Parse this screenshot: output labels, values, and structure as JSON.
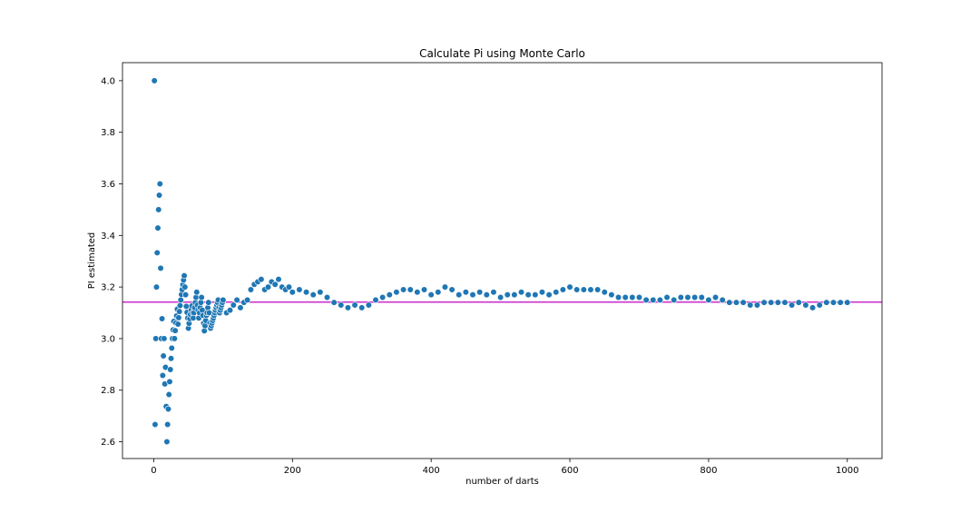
{
  "chart_data": {
    "type": "scatter",
    "title": "Calculate Pi using Monte Carlo",
    "xlabel": "number of darts",
    "ylabel": "PI estimated",
    "xlim": [
      -45,
      1050
    ],
    "ylim": [
      2.535,
      4.07
    ],
    "xticks": [
      0,
      200,
      400,
      600,
      800,
      1000
    ],
    "yticks": [
      2.6,
      2.8,
      3.0,
      3.2,
      3.4,
      3.6,
      3.8,
      4.0
    ],
    "ytick_labels": [
      "2.6",
      "2.8",
      "3.0",
      "3.2",
      "3.4",
      "3.6",
      "3.8",
      "4.0"
    ],
    "reference_line": {
      "y": 3.14159,
      "color": "#cc33cc"
    },
    "colors": {
      "points": "#1f77b4",
      "point_edge": "#ffffff",
      "frame": "#000000"
    },
    "grid": false,
    "series": [
      {
        "points": [
          [
            1,
            4.0
          ],
          [
            2,
            2.667
          ],
          [
            3,
            3.0
          ],
          [
            4,
            3.2
          ],
          [
            5,
            3.333
          ],
          [
            6,
            3.429
          ],
          [
            7,
            3.5
          ],
          [
            8,
            3.556
          ],
          [
            9,
            3.6
          ],
          [
            10,
            3.273
          ],
          [
            11,
            3.0
          ],
          [
            12,
            3.077
          ],
          [
            13,
            2.857
          ],
          [
            14,
            2.933
          ],
          [
            15,
            3.0
          ],
          [
            16,
            2.824
          ],
          [
            17,
            2.889
          ],
          [
            18,
            2.737
          ],
          [
            19,
            2.6
          ],
          [
            20,
            2.667
          ],
          [
            21,
            2.727
          ],
          [
            22,
            2.783
          ],
          [
            23,
            2.833
          ],
          [
            24,
            2.88
          ],
          [
            25,
            2.923
          ],
          [
            26,
            2.963
          ],
          [
            27,
            3.0
          ],
          [
            28,
            3.034
          ],
          [
            29,
            3.067
          ],
          [
            30,
            3.0
          ],
          [
            31,
            3.031
          ],
          [
            32,
            3.061
          ],
          [
            33,
            3.088
          ],
          [
            34,
            3.114
          ],
          [
            35,
            3.056
          ],
          [
            36,
            3.081
          ],
          [
            37,
            3.105
          ],
          [
            38,
            3.128
          ],
          [
            39,
            3.15
          ],
          [
            40,
            3.171
          ],
          [
            41,
            3.19
          ],
          [
            42,
            3.209
          ],
          [
            43,
            3.227
          ],
          [
            44,
            3.244
          ],
          [
            45,
            3.2
          ],
          [
            46,
            3.17
          ],
          [
            47,
            3.125
          ],
          [
            48,
            3.102
          ],
          [
            49,
            3.08
          ],
          [
            50,
            3.04
          ],
          [
            51,
            3.059
          ],
          [
            52,
            3.077
          ],
          [
            53,
            3.094
          ],
          [
            54,
            3.111
          ],
          [
            55,
            3.127
          ],
          [
            56,
            3.1
          ],
          [
            57,
            3.08
          ],
          [
            58,
            3.1
          ],
          [
            59,
            3.12
          ],
          [
            60,
            3.14
          ],
          [
            61,
            3.16
          ],
          [
            62,
            3.18
          ],
          [
            63,
            3.13
          ],
          [
            64,
            3.11
          ],
          [
            65,
            3.08
          ],
          [
            66,
            3.1
          ],
          [
            67,
            3.12
          ],
          [
            68,
            3.14
          ],
          [
            69,
            3.16
          ],
          [
            70,
            3.11
          ],
          [
            71,
            3.09
          ],
          [
            72,
            3.06
          ],
          [
            73,
            3.03
          ],
          [
            74,
            3.05
          ],
          [
            75,
            3.07
          ],
          [
            76,
            3.09
          ],
          [
            77,
            3.1
          ],
          [
            78,
            3.12
          ],
          [
            79,
            3.14
          ],
          [
            80,
            3.1
          ],
          [
            81,
            3.06
          ],
          [
            82,
            3.04
          ],
          [
            83,
            3.05
          ],
          [
            84,
            3.06
          ],
          [
            85,
            3.07
          ],
          [
            86,
            3.08
          ],
          [
            87,
            3.09
          ],
          [
            88,
            3.1
          ],
          [
            89,
            3.11
          ],
          [
            90,
            3.12
          ],
          [
            91,
            3.13
          ],
          [
            92,
            3.14
          ],
          [
            93,
            3.15
          ],
          [
            94,
            3.12
          ],
          [
            95,
            3.1
          ],
          [
            96,
            3.11
          ],
          [
            97,
            3.12
          ],
          [
            98,
            3.13
          ],
          [
            99,
            3.14
          ],
          [
            100,
            3.15
          ],
          [
            105,
            3.1
          ],
          [
            110,
            3.11
          ],
          [
            115,
            3.13
          ],
          [
            120,
            3.15
          ],
          [
            125,
            3.12
          ],
          [
            130,
            3.14
          ],
          [
            135,
            3.15
          ],
          [
            140,
            3.19
          ],
          [
            145,
            3.21
          ],
          [
            150,
            3.22
          ],
          [
            155,
            3.23
          ],
          [
            160,
            3.19
          ],
          [
            165,
            3.2
          ],
          [
            170,
            3.22
          ],
          [
            175,
            3.21
          ],
          [
            180,
            3.23
          ],
          [
            185,
            3.2
          ],
          [
            190,
            3.19
          ],
          [
            195,
            3.2
          ],
          [
            200,
            3.18
          ],
          [
            210,
            3.19
          ],
          [
            220,
            3.18
          ],
          [
            230,
            3.17
          ],
          [
            240,
            3.18
          ],
          [
            250,
            3.16
          ],
          [
            260,
            3.14
          ],
          [
            270,
            3.13
          ],
          [
            280,
            3.12
          ],
          [
            290,
            3.13
          ],
          [
            300,
            3.12
          ],
          [
            310,
            3.13
          ],
          [
            320,
            3.15
          ],
          [
            330,
            3.16
          ],
          [
            340,
            3.17
          ],
          [
            350,
            3.18
          ],
          [
            360,
            3.19
          ],
          [
            370,
            3.19
          ],
          [
            380,
            3.18
          ],
          [
            390,
            3.19
          ],
          [
            400,
            3.17
          ],
          [
            410,
            3.18
          ],
          [
            420,
            3.2
          ],
          [
            430,
            3.19
          ],
          [
            440,
            3.17
          ],
          [
            450,
            3.18
          ],
          [
            460,
            3.17
          ],
          [
            470,
            3.18
          ],
          [
            480,
            3.17
          ],
          [
            490,
            3.18
          ],
          [
            500,
            3.16
          ],
          [
            510,
            3.17
          ],
          [
            520,
            3.17
          ],
          [
            530,
            3.18
          ],
          [
            540,
            3.17
          ],
          [
            550,
            3.17
          ],
          [
            560,
            3.18
          ],
          [
            570,
            3.17
          ],
          [
            580,
            3.18
          ],
          [
            590,
            3.19
          ],
          [
            600,
            3.2
          ],
          [
            610,
            3.19
          ],
          [
            620,
            3.19
          ],
          [
            630,
            3.19
          ],
          [
            640,
            3.19
          ],
          [
            650,
            3.18
          ],
          [
            660,
            3.17
          ],
          [
            670,
            3.16
          ],
          [
            680,
            3.16
          ],
          [
            690,
            3.16
          ],
          [
            700,
            3.16
          ],
          [
            710,
            3.15
          ],
          [
            720,
            3.15
          ],
          [
            730,
            3.15
          ],
          [
            740,
            3.16
          ],
          [
            750,
            3.15
          ],
          [
            760,
            3.16
          ],
          [
            770,
            3.16
          ],
          [
            780,
            3.16
          ],
          [
            790,
            3.16
          ],
          [
            800,
            3.15
          ],
          [
            810,
            3.16
          ],
          [
            820,
            3.15
          ],
          [
            830,
            3.14
          ],
          [
            840,
            3.14
          ],
          [
            850,
            3.14
          ],
          [
            860,
            3.13
          ],
          [
            870,
            3.13
          ],
          [
            880,
            3.14
          ],
          [
            890,
            3.14
          ],
          [
            900,
            3.14
          ],
          [
            910,
            3.14
          ],
          [
            920,
            3.13
          ],
          [
            930,
            3.14
          ],
          [
            940,
            3.13
          ],
          [
            950,
            3.12
          ],
          [
            960,
            3.13
          ],
          [
            970,
            3.14
          ],
          [
            980,
            3.14
          ],
          [
            990,
            3.14
          ],
          [
            1000,
            3.14
          ]
        ]
      }
    ]
  }
}
